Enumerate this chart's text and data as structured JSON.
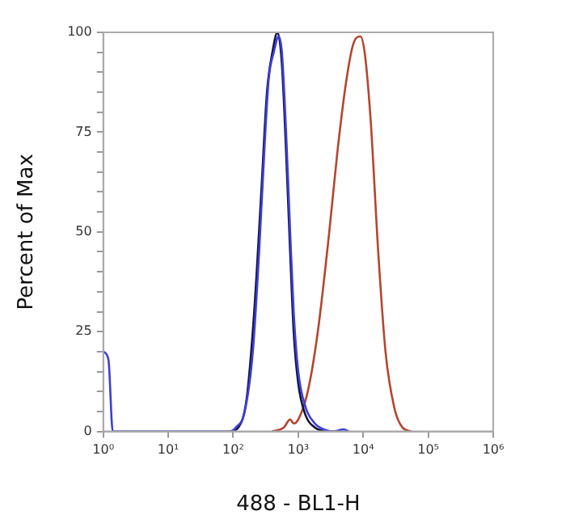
{
  "chart_data": {
    "type": "line",
    "xlabel": "488 - BL1-H",
    "ylabel": "Percent of Max",
    "log": "x",
    "grid": false,
    "legend": false,
    "marker": "none",
    "line_style": "solid",
    "xlim": [
      1,
      1000000
    ],
    "xticks": [
      {
        "value": 1,
        "label": "10⁰"
      },
      {
        "value": 10,
        "label": "10¹"
      },
      {
        "value": 100,
        "label": "10²"
      },
      {
        "value": 1000,
        "label": "10³"
      },
      {
        "value": 10000,
        "label": "10⁴"
      },
      {
        "value": 100000,
        "label": "10⁵"
      },
      {
        "value": 1000000,
        "label": "10⁶"
      }
    ],
    "ylim": [
      0,
      100
    ],
    "yticks": [
      0,
      {
        "value": 5,
        "label": null
      },
      {
        "value": 10,
        "label": null
      },
      {
        "value": 15,
        "label": null
      },
      {
        "value": 20,
        "label": null
      },
      25,
      {
        "value": 30,
        "label": null
      },
      {
        "value": 35,
        "label": null
      },
      {
        "value": 40,
        "label": null
      },
      {
        "value": 45,
        "label": null
      },
      50,
      {
        "value": 55,
        "label": null
      },
      {
        "value": 60,
        "label": null
      },
      {
        "value": 65,
        "label": null
      },
      {
        "value": 70,
        "label": null
      },
      75,
      {
        "value": 80,
        "label": null
      },
      {
        "value": 85,
        "label": null
      },
      {
        "value": 90,
        "label": null
      },
      {
        "value": 95,
        "label": null
      },
      100
    ],
    "series": [
      {
        "color": "#3b3fd8",
        "x": [
          1,
          1.2,
          1.4,
          90,
          110,
          150,
          200,
          250,
          300,
          350,
          420,
          500,
          560,
          650,
          750,
          850,
          1000,
          1300,
          1800,
          2500,
          3500,
          5000,
          6000
        ],
        "values": [
          20,
          18,
          0,
          0,
          1,
          5,
          20,
          45,
          70,
          88,
          95,
          99,
          95,
          75,
          50,
          30,
          15,
          6,
          2,
          0.5,
          0,
          0.5,
          0
        ]
      },
      {
        "color": "#12123a",
        "x": [
          90,
          120,
          160,
          210,
          270,
          330,
          400,
          480,
          560,
          650,
          750,
          850,
          1000,
          1300,
          1800,
          2500
        ],
        "values": [
          0,
          1,
          8,
          30,
          60,
          85,
          95,
          100,
          92,
          70,
          45,
          25,
          12,
          4,
          1,
          0
        ]
      },
      {
        "color": "#b5452f",
        "x": [
          400,
          600,
          750,
          850,
          1000,
          1400,
          2000,
          3000,
          4000,
          5500,
          7000,
          9000,
          10500,
          13000,
          17000,
          22000,
          30000,
          40000,
          55000
        ],
        "values": [
          0,
          1,
          3,
          2,
          3,
          10,
          25,
          50,
          70,
          88,
          97,
          99,
          95,
          78,
          45,
          20,
          6,
          1,
          0
        ]
      }
    ]
  }
}
